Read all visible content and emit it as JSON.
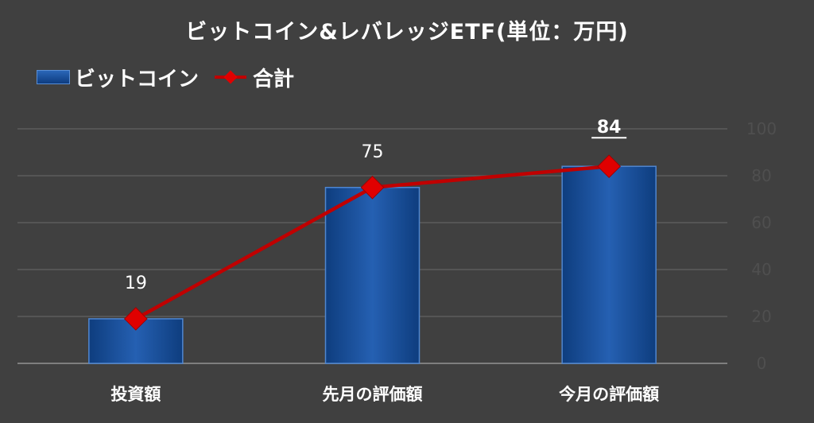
{
  "title": "ビットコイン&レバレッジETF(単位：万円)",
  "legend": {
    "bar_label": "ビットコイン",
    "line_label": "合計"
  },
  "chart_data": {
    "type": "bar",
    "title": "ビットコイン&レバレッジETF(単位：万円)",
    "categories": [
      "投資額",
      "先月の評価額",
      "今月の評価額"
    ],
    "series": [
      {
        "name": "ビットコイン",
        "type": "bar",
        "values": [
          19,
          75,
          84
        ]
      },
      {
        "name": "合計",
        "type": "line",
        "values": [
          19,
          75,
          84
        ]
      }
    ],
    "data_labels": [
      "19",
      "75",
      "84"
    ],
    "highlighted_label": "84",
    "y_axis": {
      "position": "right",
      "ylim": [
        0,
        100
      ],
      "ticks": [
        0,
        20,
        40,
        60,
        80,
        100
      ]
    },
    "grid": true,
    "legend_position": "top-left",
    "colors": {
      "bar": "#1f57a6",
      "line": "#c00000",
      "marker": "#e00000",
      "background": "#404040"
    }
  }
}
